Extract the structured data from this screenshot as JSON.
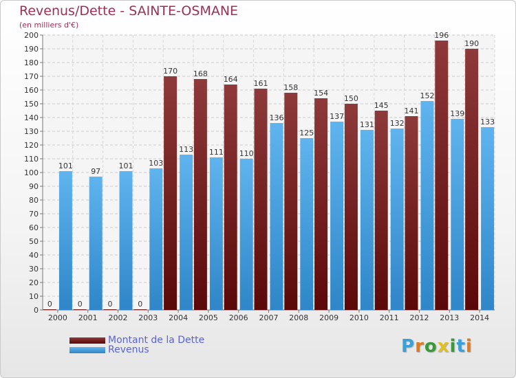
{
  "title": "Revenus/Dette - SAINTE-OSMANE",
  "subtitle": "(en milliers d'€)",
  "logo": {
    "letters": [
      "P",
      "r",
      "o",
      "x",
      "i",
      "t",
      "i"
    ],
    "colors": [
      "#3aa0d8",
      "#e07a1f",
      "#3a9a3a",
      "#e0c020",
      "#3a9a3a",
      "#3aa0d8",
      "#e07a1f"
    ]
  },
  "chart_data": {
    "type": "bar",
    "categories": [
      "2000",
      "2001",
      "2002",
      "2003",
      "2004",
      "2005",
      "2006",
      "2007",
      "2008",
      "2009",
      "2010",
      "2011",
      "2012",
      "2013",
      "2014"
    ],
    "series": [
      {
        "name": "Montant de la Dette",
        "color": "#7a1c1c",
        "values": [
          0,
          0,
          0,
          0,
          170,
          168,
          164,
          161,
          158,
          154,
          150,
          145,
          141,
          196,
          190
        ]
      },
      {
        "name": "Revenus",
        "color": "#4aa3e3",
        "values": [
          101,
          97,
          101,
          103,
          113,
          111,
          110,
          136,
          125,
          137,
          131,
          132,
          152,
          139,
          133
        ]
      }
    ],
    "yticks": [
      0,
      10,
      20,
      30,
      40,
      50,
      60,
      70,
      80,
      90,
      100,
      110,
      120,
      130,
      140,
      150,
      160,
      170,
      180,
      190,
      200
    ],
    "ylim": [
      0,
      200
    ],
    "grid": true,
    "legend_position": "bottom-left"
  }
}
